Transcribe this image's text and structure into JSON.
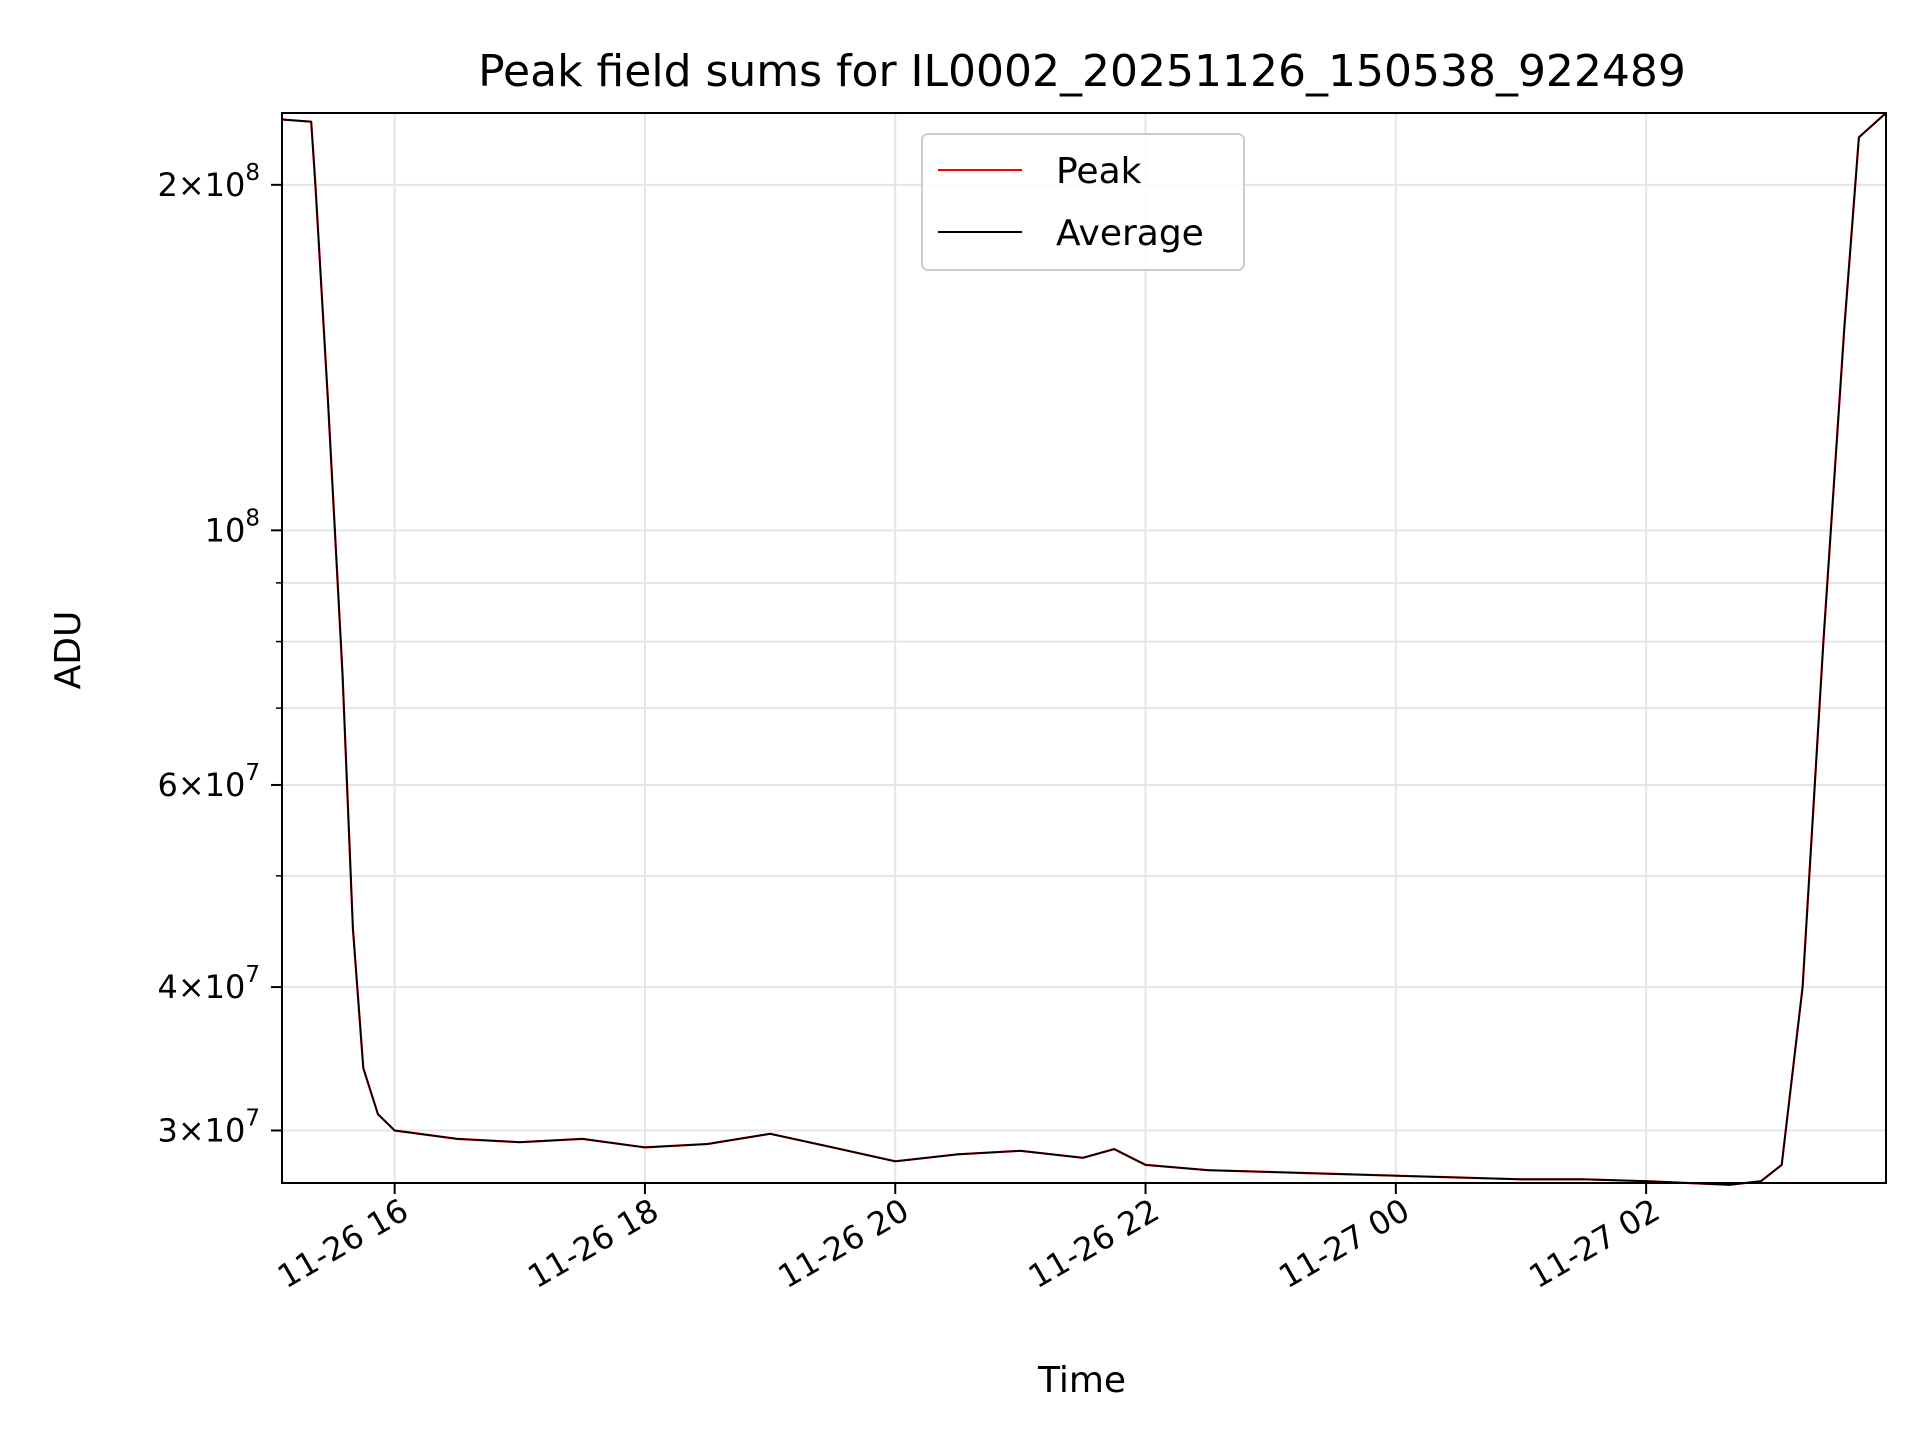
{
  "chart_data": {
    "type": "line",
    "title": "Peak field sums for IL0002_20251126_150538_922489",
    "xlabel": "Time",
    "ylabel": "ADU",
    "xlim": [
      "2025-11-26 15:06",
      "2025-11-27 03:55"
    ],
    "ylim": [
      27000000,
      231000000
    ],
    "yscale": "log",
    "grid": true,
    "legend": {
      "position": "top-center",
      "entries": [
        "Peak",
        "Average"
      ]
    },
    "x_ticks": [
      {
        "value": "2025-11-26 16:00",
        "label": "11-26 16"
      },
      {
        "value": "2025-11-26 18:00",
        "label": "11-26 18"
      },
      {
        "value": "2025-11-26 20:00",
        "label": "11-26 20"
      },
      {
        "value": "2025-11-26 22:00",
        "label": "11-26 22"
      },
      {
        "value": "2025-11-27 00:00",
        "label": "11-27 00"
      },
      {
        "value": "2025-11-27 02:00",
        "label": "11-27 02"
      }
    ],
    "y_ticks": [
      {
        "value": 30000000,
        "mantissa": "3",
        "exponent": "7"
      },
      {
        "value": 40000000,
        "mantissa": "4",
        "exponent": "7"
      },
      {
        "value": 60000000,
        "mantissa": "6",
        "exponent": "7"
      },
      {
        "value": 100000000,
        "mantissa": "",
        "exponent": "8"
      },
      {
        "value": 200000000,
        "mantissa": "2",
        "exponent": "8"
      }
    ],
    "y_minor_ticks": [
      50000000,
      70000000,
      80000000,
      90000000
    ],
    "series": [
      {
        "name": "Average",
        "color": "#000000",
        "x": [
          "2025-11-26 15:06",
          "2025-11-26 15:20",
          "2025-11-26 15:22",
          "2025-11-26 15:28",
          "2025-11-26 15:35",
          "2025-11-26 15:40",
          "2025-11-26 15:45",
          "2025-11-26 15:52",
          "2025-11-26 16:00",
          "2025-11-26 16:30",
          "2025-11-26 17:00",
          "2025-11-26 17:30",
          "2025-11-26 18:00",
          "2025-11-26 18:30",
          "2025-11-26 19:00",
          "2025-11-26 19:30",
          "2025-11-26 20:00",
          "2025-11-26 20:30",
          "2025-11-26 21:00",
          "2025-11-26 21:30",
          "2025-11-26 21:45",
          "2025-11-26 22:00",
          "2025-11-26 22:30",
          "2025-11-26 23:00",
          "2025-11-26 23:30",
          "2025-11-27 00:00",
          "2025-11-27 00:30",
          "2025-11-27 01:00",
          "2025-11-27 01:30",
          "2025-11-27 02:00",
          "2025-11-27 02:20",
          "2025-11-27 02:40",
          "2025-11-27 02:55",
          "2025-11-27 03:05",
          "2025-11-27 03:15",
          "2025-11-27 03:25",
          "2025-11-27 03:35",
          "2025-11-27 03:42",
          "2025-11-27 03:55"
        ],
        "values": [
          228000000,
          227000000,
          200000000,
          130000000,
          75000000,
          45000000,
          34000000,
          31000000,
          30000000,
          29500000,
          29300000,
          29500000,
          29000000,
          29200000,
          29800000,
          29000000,
          28200000,
          28600000,
          28800000,
          28400000,
          28900000,
          28000000,
          27700000,
          27600000,
          27500000,
          27400000,
          27300000,
          27200000,
          27200000,
          27100000,
          27000000,
          26900000,
          27100000,
          28000000,
          40000000,
          80000000,
          150000000,
          220000000,
          231000000
        ]
      },
      {
        "name": "Peak",
        "color": "#ff0000",
        "x": [
          "2025-11-26 15:06",
          "2025-11-26 15:20",
          "2025-11-26 15:22",
          "2025-11-26 15:28",
          "2025-11-26 15:35",
          "2025-11-26 15:40",
          "2025-11-26 15:45",
          "2025-11-26 15:52",
          "2025-11-26 16:00",
          "2025-11-26 16:30",
          "2025-11-26 17:00",
          "2025-11-26 17:30",
          "2025-11-26 18:00",
          "2025-11-26 18:30",
          "2025-11-26 19:00",
          "2025-11-26 19:30",
          "2025-11-26 20:00",
          "2025-11-26 20:30",
          "2025-11-26 21:00",
          "2025-11-26 21:30",
          "2025-11-26 21:45",
          "2025-11-26 22:00",
          "2025-11-26 22:30",
          "2025-11-26 23:00",
          "2025-11-26 23:30",
          "2025-11-27 00:00",
          "2025-11-27 00:30",
          "2025-11-27 01:00",
          "2025-11-27 01:30",
          "2025-11-27 02:00",
          "2025-11-27 02:20",
          "2025-11-27 02:40",
          "2025-11-27 02:55",
          "2025-11-27 03:05",
          "2025-11-27 03:15",
          "2025-11-27 03:25",
          "2025-11-27 03:35",
          "2025-11-27 03:42",
          "2025-11-27 03:55"
        ],
        "values": [
          228000000,
          227000000,
          200000000,
          130000000,
          75000000,
          45000000,
          34000000,
          31000000,
          30000000,
          29500000,
          29300000,
          29500000,
          29000000,
          29200000,
          29800000,
          29000000,
          28200000,
          28600000,
          28800000,
          28400000,
          28900000,
          28000000,
          27700000,
          27600000,
          27500000,
          27400000,
          27300000,
          27200000,
          27200000,
          27100000,
          27000000,
          26900000,
          27100000,
          28000000,
          40000000,
          80000000,
          150000000,
          220000000,
          231000000
        ]
      }
    ]
  }
}
